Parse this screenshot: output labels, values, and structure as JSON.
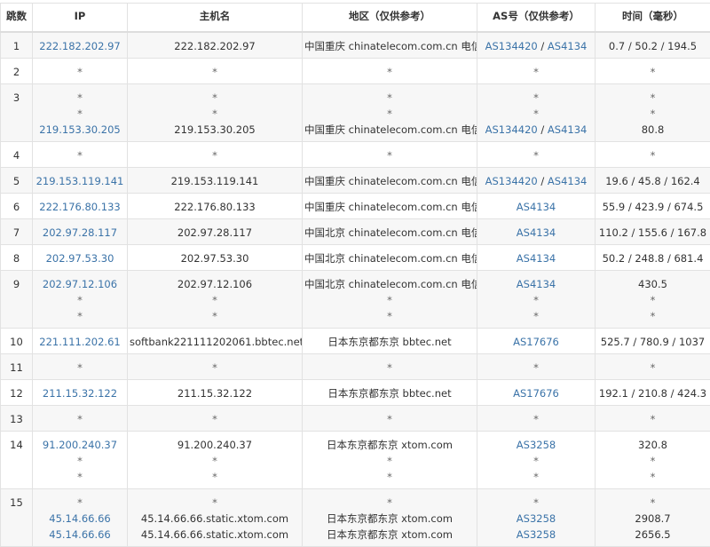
{
  "colors": {
    "link": "#3b73a8",
    "text": "#333333",
    "row_alt": "#f7f7f7",
    "border": "#e2e2e2"
  },
  "headers": [
    "跳数",
    "IP",
    "主机名",
    "地区（仅供参考）",
    "AS号（仅供参考）",
    "时间（毫秒）"
  ],
  "rows": [
    {
      "hop": "1",
      "ip": [
        [
          {
            "t": "222.182.202.97",
            "l": true
          }
        ]
      ],
      "host": [
        [
          {
            "t": "222.182.202.97"
          }
        ]
      ],
      "region": [
        [
          {
            "t": "中国重庆 chinatelecom.com.cn 电信"
          }
        ]
      ],
      "as": [
        [
          {
            "t": "AS134420",
            "l": true
          },
          {
            "t": " / "
          },
          {
            "t": "AS4134",
            "l": true
          }
        ]
      ],
      "time": [
        [
          {
            "t": "0.7 / 50.2 / 194.5"
          }
        ]
      ]
    },
    {
      "hop": "2",
      "ip": [
        [
          {
            "t": "*"
          }
        ]
      ],
      "host": [
        [
          {
            "t": "*"
          }
        ]
      ],
      "region": [
        [
          {
            "t": "*"
          }
        ]
      ],
      "as": [
        [
          {
            "t": "*"
          }
        ]
      ],
      "time": [
        [
          {
            "t": "*"
          }
        ]
      ]
    },
    {
      "hop": "3",
      "ip": [
        [
          {
            "t": "*"
          }
        ],
        [
          {
            "t": "*"
          }
        ],
        [
          {
            "t": "219.153.30.205",
            "l": true
          }
        ]
      ],
      "host": [
        [
          {
            "t": "*"
          }
        ],
        [
          {
            "t": "*"
          }
        ],
        [
          {
            "t": "219.153.30.205"
          }
        ]
      ],
      "region": [
        [
          {
            "t": "*"
          }
        ],
        [
          {
            "t": "*"
          }
        ],
        [
          {
            "t": "中国重庆 chinatelecom.com.cn 电信"
          }
        ]
      ],
      "as": [
        [
          {
            "t": "*"
          }
        ],
        [
          {
            "t": "*"
          }
        ],
        [
          {
            "t": "AS134420",
            "l": true
          },
          {
            "t": " / "
          },
          {
            "t": "AS4134",
            "l": true
          }
        ]
      ],
      "time": [
        [
          {
            "t": "*"
          }
        ],
        [
          {
            "t": "*"
          }
        ],
        [
          {
            "t": "80.8"
          }
        ]
      ]
    },
    {
      "hop": "4",
      "ip": [
        [
          {
            "t": "*"
          }
        ]
      ],
      "host": [
        [
          {
            "t": "*"
          }
        ]
      ],
      "region": [
        [
          {
            "t": "*"
          }
        ]
      ],
      "as": [
        [
          {
            "t": "*"
          }
        ]
      ],
      "time": [
        [
          {
            "t": "*"
          }
        ]
      ]
    },
    {
      "hop": "5",
      "ip": [
        [
          {
            "t": "219.153.119.141",
            "l": true
          }
        ]
      ],
      "host": [
        [
          {
            "t": "219.153.119.141"
          }
        ]
      ],
      "region": [
        [
          {
            "t": "中国重庆 chinatelecom.com.cn 电信"
          }
        ]
      ],
      "as": [
        [
          {
            "t": "AS134420",
            "l": true
          },
          {
            "t": " / "
          },
          {
            "t": "AS4134",
            "l": true
          }
        ]
      ],
      "time": [
        [
          {
            "t": "19.6 / 45.8 / 162.4"
          }
        ]
      ]
    },
    {
      "hop": "6",
      "ip": [
        [
          {
            "t": "222.176.80.133",
            "l": true
          }
        ]
      ],
      "host": [
        [
          {
            "t": "222.176.80.133"
          }
        ]
      ],
      "region": [
        [
          {
            "t": "中国重庆 chinatelecom.com.cn 电信"
          }
        ]
      ],
      "as": [
        [
          {
            "t": "AS4134",
            "l": true
          }
        ]
      ],
      "time": [
        [
          {
            "t": "55.9 / 423.9 / 674.5"
          }
        ]
      ]
    },
    {
      "hop": "7",
      "ip": [
        [
          {
            "t": "202.97.28.117",
            "l": true
          }
        ]
      ],
      "host": [
        [
          {
            "t": "202.97.28.117"
          }
        ]
      ],
      "region": [
        [
          {
            "t": "中国北京 chinatelecom.com.cn 电信"
          }
        ]
      ],
      "as": [
        [
          {
            "t": "AS4134",
            "l": true
          }
        ]
      ],
      "time": [
        [
          {
            "t": "110.2 / 155.6 / 167.8"
          }
        ]
      ]
    },
    {
      "hop": "8",
      "ip": [
        [
          {
            "t": "202.97.53.30",
            "l": true
          }
        ]
      ],
      "host": [
        [
          {
            "t": "202.97.53.30"
          }
        ]
      ],
      "region": [
        [
          {
            "t": "中国北京 chinatelecom.com.cn 电信"
          }
        ]
      ],
      "as": [
        [
          {
            "t": "AS4134",
            "l": true
          }
        ]
      ],
      "time": [
        [
          {
            "t": "50.2 / 248.8 / 681.4"
          }
        ]
      ]
    },
    {
      "hop": "9",
      "ip": [
        [
          {
            "t": "202.97.12.106",
            "l": true
          }
        ],
        [
          {
            "t": "*"
          }
        ],
        [
          {
            "t": "*"
          }
        ]
      ],
      "host": [
        [
          {
            "t": "202.97.12.106"
          }
        ],
        [
          {
            "t": "*"
          }
        ],
        [
          {
            "t": "*"
          }
        ]
      ],
      "region": [
        [
          {
            "t": "中国北京 chinatelecom.com.cn 电信"
          }
        ],
        [
          {
            "t": "*"
          }
        ],
        [
          {
            "t": "*"
          }
        ]
      ],
      "as": [
        [
          {
            "t": "AS4134",
            "l": true
          }
        ],
        [
          {
            "t": "*"
          }
        ],
        [
          {
            "t": "*"
          }
        ]
      ],
      "time": [
        [
          {
            "t": "430.5"
          }
        ],
        [
          {
            "t": "*"
          }
        ],
        [
          {
            "t": "*"
          }
        ]
      ]
    },
    {
      "hop": "10",
      "ip": [
        [
          {
            "t": "221.111.202.61",
            "l": true
          }
        ]
      ],
      "host": [
        [
          {
            "t": "softbank221111202061.bbtec.net"
          }
        ]
      ],
      "region": [
        [
          {
            "t": "日本东京都东京 bbtec.net"
          }
        ]
      ],
      "as": [
        [
          {
            "t": "AS17676",
            "l": true
          }
        ]
      ],
      "time": [
        [
          {
            "t": "525.7 / 780.9 / 1037"
          }
        ]
      ]
    },
    {
      "hop": "11",
      "ip": [
        [
          {
            "t": "*"
          }
        ]
      ],
      "host": [
        [
          {
            "t": "*"
          }
        ]
      ],
      "region": [
        [
          {
            "t": "*"
          }
        ]
      ],
      "as": [
        [
          {
            "t": "*"
          }
        ]
      ],
      "time": [
        [
          {
            "t": "*"
          }
        ]
      ]
    },
    {
      "hop": "12",
      "ip": [
        [
          {
            "t": "211.15.32.122",
            "l": true
          }
        ]
      ],
      "host": [
        [
          {
            "t": "211.15.32.122"
          }
        ]
      ],
      "region": [
        [
          {
            "t": "日本东京都东京 bbtec.net"
          }
        ]
      ],
      "as": [
        [
          {
            "t": "AS17676",
            "l": true
          }
        ]
      ],
      "time": [
        [
          {
            "t": "192.1 / 210.8 / 424.3"
          }
        ]
      ]
    },
    {
      "hop": "13",
      "ip": [
        [
          {
            "t": "*"
          }
        ]
      ],
      "host": [
        [
          {
            "t": "*"
          }
        ]
      ],
      "region": [
        [
          {
            "t": "*"
          }
        ]
      ],
      "as": [
        [
          {
            "t": "*"
          }
        ]
      ],
      "time": [
        [
          {
            "t": "*"
          }
        ]
      ]
    },
    {
      "hop": "14",
      "ip": [
        [
          {
            "t": "91.200.240.37",
            "l": true
          }
        ],
        [
          {
            "t": "*"
          }
        ],
        [
          {
            "t": "*"
          }
        ]
      ],
      "host": [
        [
          {
            "t": "91.200.240.37"
          }
        ],
        [
          {
            "t": "*"
          }
        ],
        [
          {
            "t": "*"
          }
        ]
      ],
      "region": [
        [
          {
            "t": "日本东京都东京 xtom.com"
          }
        ],
        [
          {
            "t": "*"
          }
        ],
        [
          {
            "t": "*"
          }
        ]
      ],
      "as": [
        [
          {
            "t": "AS3258",
            "l": true
          }
        ],
        [
          {
            "t": "*"
          }
        ],
        [
          {
            "t": "*"
          }
        ]
      ],
      "time": [
        [
          {
            "t": "320.8"
          }
        ],
        [
          {
            "t": "*"
          }
        ],
        [
          {
            "t": "*"
          }
        ]
      ]
    },
    {
      "hop": "15",
      "ip": [
        [
          {
            "t": "*"
          }
        ],
        [
          {
            "t": "45.14.66.66",
            "l": true
          }
        ],
        [
          {
            "t": "45.14.66.66",
            "l": true
          }
        ]
      ],
      "host": [
        [
          {
            "t": "*"
          }
        ],
        [
          {
            "t": "45.14.66.66.static.xtom.com"
          }
        ],
        [
          {
            "t": "45.14.66.66.static.xtom.com"
          }
        ]
      ],
      "region": [
        [
          {
            "t": "*"
          }
        ],
        [
          {
            "t": "日本东京都东京 xtom.com"
          }
        ],
        [
          {
            "t": "日本东京都东京 xtom.com"
          }
        ]
      ],
      "as": [
        [
          {
            "t": "*"
          }
        ],
        [
          {
            "t": "AS3258",
            "l": true
          }
        ],
        [
          {
            "t": "AS3258",
            "l": true
          }
        ]
      ],
      "time": [
        [
          {
            "t": "*"
          }
        ],
        [
          {
            "t": "2908.7"
          }
        ],
        [
          {
            "t": "2656.5"
          }
        ]
      ]
    }
  ]
}
